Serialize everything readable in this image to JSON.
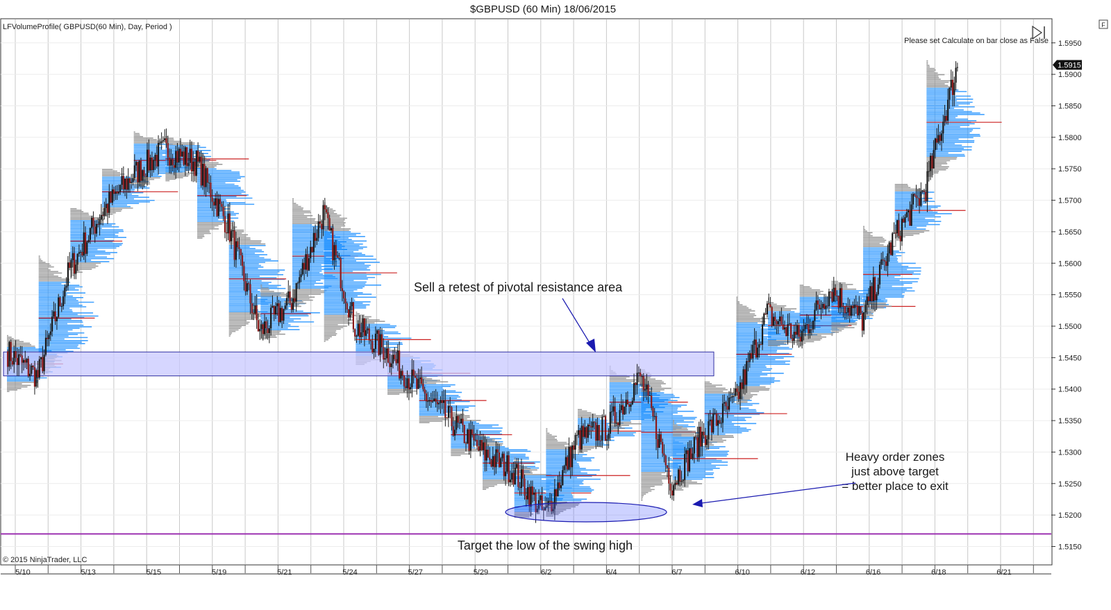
{
  "window": {
    "title": "$GBPUSD (60 Min)  18/06/2015",
    "corner_button": "F"
  },
  "indicator_label": "LFVolumeProfile( GBPUSD(60 Min), Day, Period )",
  "status_note": "Please set Calculate on bar close as False",
  "copyright": "© 2015 NinjaTrader, LLC",
  "colors": {
    "candle_up": "#1a1a1a",
    "candle_down": "#8b1a1a",
    "profile_value_area": "#1e90ff",
    "profile_outside": "#8c8c8c",
    "poc_line": "#cc2020",
    "zone_fill": "#c8c8ff",
    "zone_stroke": "#3030a0",
    "target_line": "#9b30b0",
    "annotation_arrow": "#1a1ab0"
  },
  "annotations": {
    "resistance_note": "Sell a retest of pivotal resistance area",
    "exit_note": [
      "Heavy order zones",
      "just above target",
      "= better place to exit"
    ],
    "target_note": "Target the low of the swing high"
  },
  "chart_data": {
    "type": "candlestick",
    "symbol": "$GBPUSD",
    "interval": "60 Min",
    "date": "18/06/2015",
    "x_tick_labels": [
      "5/10",
      "5/13",
      "5/15",
      "5/19",
      "5/21",
      "5/24",
      "5/27",
      "5/29",
      "6/2",
      "6/4",
      "6/7",
      "6/10",
      "6/12",
      "6/16",
      "6/18",
      "6/21"
    ],
    "y_tick_labels": [
      "1.5150",
      "1.5200",
      "1.5250",
      "1.5300",
      "1.5350",
      "1.5400",
      "1.5450",
      "1.5500",
      "1.5550",
      "1.5600",
      "1.5650",
      "1.5700",
      "1.5750",
      "1.5800",
      "1.5850",
      "1.5900",
      "1.5950"
    ],
    "ylim": [
      1.5123,
      1.5985
    ],
    "last_price": "1.5915",
    "price_path": [
      {
        "day": "5/10",
        "close": 1.542
      },
      {
        "day": "5/11",
        "close": 1.559
      },
      {
        "day": "5/12",
        "close": 1.568
      },
      {
        "day": "5/13",
        "close": 1.574
      },
      {
        "day": "5/14",
        "close": 1.578
      },
      {
        "day": "5/15",
        "close": 1.576
      },
      {
        "day": "5/18",
        "close": 1.566
      },
      {
        "day": "5/19",
        "close": 1.549
      },
      {
        "day": "5/20",
        "close": 1.554
      },
      {
        "day": "5/21",
        "close": 1.568
      },
      {
        "day": "5/22",
        "close": 1.55
      },
      {
        "day": "5/25",
        "close": 1.546
      },
      {
        "day": "5/26",
        "close": 1.54
      },
      {
        "day": "5/27",
        "close": 1.535
      },
      {
        "day": "5/28",
        "close": 1.53
      },
      {
        "day": "5/29",
        "close": 1.527
      },
      {
        "day": "6/1",
        "close": 1.52
      },
      {
        "day": "6/2",
        "close": 1.532
      },
      {
        "day": "6/3",
        "close": 1.534
      },
      {
        "day": "6/4",
        "close": 1.542
      },
      {
        "day": "6/5",
        "close": 1.525
      },
      {
        "day": "6/8",
        "close": 1.533
      },
      {
        "day": "6/9",
        "close": 1.538
      },
      {
        "day": "6/10",
        "close": 1.552
      },
      {
        "day": "6/11",
        "close": 1.548
      },
      {
        "day": "6/12",
        "close": 1.556
      },
      {
        "day": "6/15",
        "close": 1.551
      },
      {
        "day": "6/16",
        "close": 1.564
      },
      {
        "day": "6/17",
        "close": 1.572
      },
      {
        "day": "6/18",
        "close": 1.5915
      }
    ],
    "resistance_zone": {
      "from_date": "5/10",
      "to_date": "6/8",
      "price_low": 1.5421,
      "price_high": 1.5459
    },
    "target_level": 1.517,
    "grid": true
  }
}
